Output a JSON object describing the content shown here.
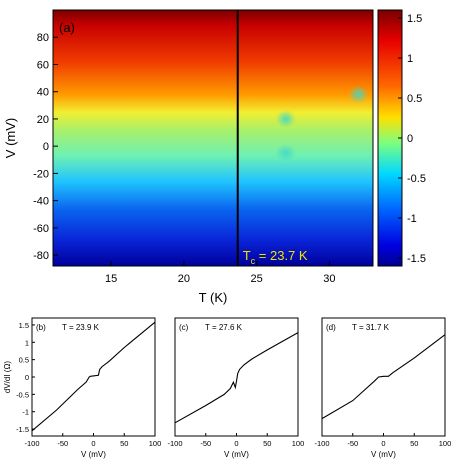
{
  "chart_data": [
    {
      "type": "heatmap",
      "panel_label": "(a)",
      "xlabel": "T (K)",
      "ylabel": "V (mV)",
      "xlim": [
        11,
        33
      ],
      "ylim": [
        -88,
        100
      ],
      "xticks": [
        15,
        20,
        25,
        30
      ],
      "yticks": [
        -80,
        -60,
        -40,
        -20,
        0,
        20,
        40,
        60,
        80
      ],
      "colorbar": {
        "min": -1.6,
        "max": 1.6,
        "ticks": [
          -1.5,
          -1,
          -0.5,
          0,
          0.5,
          1,
          1.5
        ]
      },
      "vertical_line_T": 23.7,
      "annotation": {
        "prefix": "T",
        "subscript": "c",
        "text": " = 23.7 K"
      },
      "features": [
        {
          "T": 27.0,
          "V": 20
        },
        {
          "T": 27.0,
          "V": -5
        },
        {
          "T": 32.0,
          "V": 38
        }
      ],
      "grid": false
    },
    {
      "type": "line",
      "panel_label": "(b)",
      "title": "T = 23.9 K",
      "ylabel": "dV/dI (Ω)",
      "xlabel": "V (mV)",
      "xlim": [
        -100,
        100
      ],
      "ylim": [
        -1.7,
        1.7
      ],
      "xticks": [
        -100,
        -50,
        0,
        50,
        100
      ],
      "yticks": [
        -1.5,
        -1,
        -0.5,
        0,
        0.5,
        1,
        1.5
      ],
      "x": [
        -100,
        -60,
        -25,
        -12,
        -7,
        -5,
        8,
        10,
        14,
        25,
        50,
        100
      ],
      "y": [
        -1.55,
        -0.95,
        -0.35,
        -0.15,
        0.0,
        0.02,
        0.05,
        0.22,
        0.3,
        0.45,
        0.85,
        1.58
      ]
    },
    {
      "type": "line",
      "panel_label": "(c)",
      "title": "T = 27.6 K",
      "xlabel": "V (mV)",
      "xlim": [
        -100,
        100
      ],
      "ylim": [
        -1.7,
        1.7
      ],
      "xticks": [
        -100,
        -50,
        0,
        50,
        100
      ],
      "x": [
        -100,
        -50,
        -20,
        -10,
        -5,
        -2,
        0,
        2,
        5,
        12,
        25,
        50,
        100
      ],
      "y": [
        -1.32,
        -0.82,
        -0.5,
        -0.33,
        -0.15,
        -0.3,
        -0.12,
        0.1,
        0.22,
        0.35,
        0.52,
        0.78,
        1.28
      ]
    },
    {
      "type": "line",
      "panel_label": "(d)",
      "title": "T = 31.7 K",
      "xlabel": "V (mV)",
      "xlim": [
        -100,
        100
      ],
      "ylim": [
        -1.7,
        1.7
      ],
      "xticks": [
        -100,
        -50,
        0,
        50,
        100
      ],
      "x": [
        -100,
        -50,
        -15,
        -8,
        0,
        8,
        15,
        50,
        100
      ],
      "y": [
        -1.2,
        -0.68,
        -0.12,
        0.0,
        0.02,
        0.02,
        0.12,
        0.55,
        1.22
      ]
    }
  ]
}
